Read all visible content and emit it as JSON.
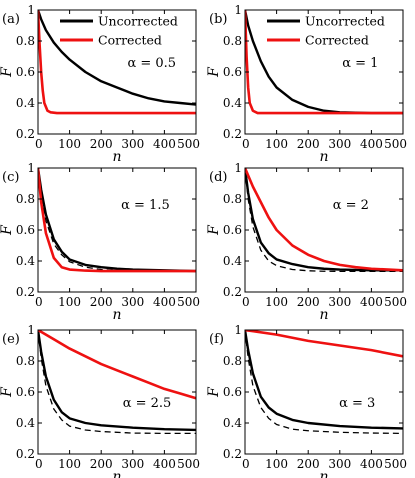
{
  "chart_data": [
    {
      "type": "line",
      "panel_label": "(a)",
      "annotation": "α = 0.5",
      "xlabel": "n",
      "ylabel": "F",
      "xlim": [
        0,
        500
      ],
      "ylim": [
        0.2,
        1.0
      ],
      "xticks": [
        "0",
        "100",
        "200",
        "300",
        "400",
        "500"
      ],
      "yticks": [
        "0.2",
        "0.4",
        "0.6",
        "0.8",
        "1"
      ],
      "legend": {
        "position": "top-right",
        "entries": [
          "Uncorrected",
          "Corrected"
        ]
      },
      "series": [
        {
          "name": "Uncorrected",
          "color": "#000000",
          "style": "solid",
          "x": [
            0,
            10,
            25,
            50,
            75,
            100,
            150,
            200,
            250,
            300,
            350,
            400,
            450,
            500
          ],
          "y": [
            1.0,
            0.94,
            0.87,
            0.79,
            0.73,
            0.68,
            0.6,
            0.54,
            0.5,
            0.46,
            0.43,
            0.41,
            0.4,
            0.39
          ]
        },
        {
          "name": "Corrected",
          "color": "#ee1111",
          "style": "solid",
          "x": [
            0,
            5,
            10,
            15,
            20,
            30,
            40,
            60,
            100,
            200,
            300,
            400,
            500
          ],
          "y": [
            1.0,
            0.78,
            0.6,
            0.48,
            0.4,
            0.35,
            0.34,
            0.335,
            0.335,
            0.335,
            0.335,
            0.335,
            0.335
          ]
        }
      ]
    },
    {
      "type": "line",
      "panel_label": "(b)",
      "annotation": "α = 1",
      "xlabel": "n",
      "ylabel": "F",
      "xlim": [
        0,
        500
      ],
      "ylim": [
        0.2,
        1.0
      ],
      "xticks": [
        "0",
        "100",
        "200",
        "300",
        "400",
        "500"
      ],
      "yticks": [
        "0.2",
        "0.4",
        "0.6",
        "0.8",
        "1"
      ],
      "legend": {
        "position": "top-right",
        "entries": [
          "Uncorrected",
          "Corrected"
        ]
      },
      "series": [
        {
          "name": "Uncorrected",
          "color": "#000000",
          "style": "solid",
          "x": [
            0,
            10,
            25,
            50,
            75,
            100,
            150,
            200,
            250,
            300,
            400,
            500
          ],
          "y": [
            1.0,
            0.9,
            0.8,
            0.67,
            0.57,
            0.5,
            0.42,
            0.375,
            0.35,
            0.34,
            0.335,
            0.335
          ]
        },
        {
          "name": "Corrected",
          "color": "#ee1111",
          "style": "solid",
          "x": [
            0,
            5,
            10,
            15,
            25,
            40,
            100,
            200,
            300,
            400,
            500
          ],
          "y": [
            1.0,
            0.7,
            0.5,
            0.4,
            0.35,
            0.335,
            0.335,
            0.335,
            0.335,
            0.335,
            0.335
          ]
        }
      ]
    },
    {
      "type": "line",
      "panel_label": "(c)",
      "annotation": "α = 1.5",
      "xlabel": "n",
      "ylabel": "F",
      "xlim": [
        0,
        500
      ],
      "ylim": [
        0.2,
        1.0
      ],
      "xticks": [
        "0",
        "100",
        "200",
        "300",
        "400",
        "500"
      ],
      "yticks": [
        "0.2",
        "0.4",
        "0.6",
        "0.8",
        "1"
      ],
      "series": [
        {
          "name": "",
          "color": "#000000",
          "style": "solid",
          "x": [
            0,
            10,
            25,
            50,
            75,
            100,
            150,
            200,
            250,
            300,
            400,
            500
          ],
          "y": [
            1.0,
            0.86,
            0.7,
            0.54,
            0.46,
            0.41,
            0.375,
            0.36,
            0.35,
            0.345,
            0.34,
            0.335
          ]
        },
        {
          "name": "",
          "color": "#000000",
          "style": "dashed",
          "x": [
            0,
            10,
            25,
            50,
            75,
            100,
            150,
            200,
            250,
            300,
            400,
            500
          ],
          "y": [
            1.0,
            0.83,
            0.66,
            0.51,
            0.44,
            0.395,
            0.36,
            0.345,
            0.338,
            0.335,
            0.333,
            0.333
          ]
        },
        {
          "name": "",
          "color": "#ee1111",
          "style": "solid",
          "x": [
            0,
            10,
            25,
            50,
            75,
            100,
            150,
            200,
            300,
            400,
            500
          ],
          "y": [
            1.0,
            0.78,
            0.58,
            0.42,
            0.36,
            0.345,
            0.338,
            0.335,
            0.335,
            0.335,
            0.335
          ]
        }
      ]
    },
    {
      "type": "line",
      "panel_label": "(d)",
      "annotation": "α = 2",
      "xlabel": "n",
      "ylabel": "F",
      "xlim": [
        0,
        500
      ],
      "ylim": [
        0.2,
        1.0
      ],
      "xticks": [
        "0",
        "100",
        "200",
        "300",
        "400",
        "500"
      ],
      "yticks": [
        "0.2",
        "0.4",
        "0.6",
        "0.8",
        "1"
      ],
      "series": [
        {
          "name": "",
          "color": "#000000",
          "style": "solid",
          "x": [
            0,
            10,
            25,
            50,
            75,
            100,
            150,
            200,
            250,
            300,
            400,
            500
          ],
          "y": [
            1.0,
            0.84,
            0.67,
            0.52,
            0.45,
            0.41,
            0.38,
            0.36,
            0.35,
            0.345,
            0.34,
            0.34
          ]
        },
        {
          "name": "",
          "color": "#000000",
          "style": "dashed",
          "x": [
            0,
            10,
            25,
            50,
            75,
            100,
            150,
            200,
            250,
            300,
            400,
            500
          ],
          "y": [
            1.0,
            0.8,
            0.62,
            0.47,
            0.4,
            0.37,
            0.345,
            0.337,
            0.334,
            0.333,
            0.333,
            0.333
          ]
        },
        {
          "name": "",
          "color": "#ee1111",
          "style": "solid",
          "x": [
            0,
            25,
            50,
            75,
            100,
            150,
            200,
            250,
            300,
            350,
            400,
            500
          ],
          "y": [
            1.0,
            0.88,
            0.78,
            0.68,
            0.6,
            0.5,
            0.44,
            0.4,
            0.375,
            0.36,
            0.35,
            0.34
          ]
        }
      ]
    },
    {
      "type": "line",
      "panel_label": "(e)",
      "annotation": "α = 2.5",
      "xlabel": "n",
      "ylabel": "F",
      "xlim": [
        0,
        500
      ],
      "ylim": [
        0.2,
        1.0
      ],
      "xticks": [
        "0",
        "100",
        "200",
        "300",
        "400",
        "500"
      ],
      "yticks": [
        "0.2",
        "0.4",
        "0.6",
        "0.8",
        "1"
      ],
      "series": [
        {
          "name": "",
          "color": "#000000",
          "style": "solid",
          "x": [
            0,
            10,
            25,
            50,
            75,
            100,
            150,
            200,
            300,
            400,
            500
          ],
          "y": [
            1.0,
            0.86,
            0.7,
            0.55,
            0.47,
            0.43,
            0.4,
            0.385,
            0.37,
            0.36,
            0.355
          ]
        },
        {
          "name": "",
          "color": "#000000",
          "style": "dashed",
          "x": [
            0,
            10,
            25,
            50,
            75,
            100,
            150,
            200,
            300,
            400,
            500
          ],
          "y": [
            1.0,
            0.82,
            0.64,
            0.49,
            0.42,
            0.38,
            0.355,
            0.345,
            0.335,
            0.333,
            0.333
          ]
        },
        {
          "name": "",
          "color": "#ee1111",
          "style": "solid",
          "x": [
            0,
            50,
            100,
            150,
            200,
            250,
            300,
            350,
            400,
            450,
            500
          ],
          "y": [
            1.0,
            0.94,
            0.88,
            0.83,
            0.78,
            0.74,
            0.7,
            0.66,
            0.62,
            0.59,
            0.56
          ]
        }
      ]
    },
    {
      "type": "line",
      "panel_label": "(f)",
      "annotation": "α = 3",
      "xlabel": "n",
      "ylabel": "F",
      "xlim": [
        0,
        500
      ],
      "ylim": [
        0.2,
        1.0
      ],
      "xticks": [
        "0",
        "100",
        "200",
        "300",
        "400",
        "500"
      ],
      "yticks": [
        "0.2",
        "0.4",
        "0.6",
        "0.8",
        "1"
      ],
      "series": [
        {
          "name": "",
          "color": "#000000",
          "style": "solid",
          "x": [
            0,
            10,
            25,
            50,
            75,
            100,
            150,
            200,
            300,
            400,
            500
          ],
          "y": [
            1.0,
            0.87,
            0.72,
            0.57,
            0.5,
            0.46,
            0.42,
            0.4,
            0.38,
            0.37,
            0.365
          ]
        },
        {
          "name": "",
          "color": "#000000",
          "style": "dashed",
          "x": [
            0,
            10,
            25,
            50,
            75,
            100,
            150,
            200,
            300,
            400,
            500
          ],
          "y": [
            1.0,
            0.82,
            0.64,
            0.5,
            0.43,
            0.39,
            0.36,
            0.35,
            0.34,
            0.335,
            0.333
          ]
        },
        {
          "name": "",
          "color": "#ee1111",
          "style": "solid",
          "x": [
            0,
            100,
            200,
            300,
            400,
            500
          ],
          "y": [
            1.0,
            0.97,
            0.93,
            0.9,
            0.87,
            0.83
          ]
        }
      ]
    }
  ]
}
